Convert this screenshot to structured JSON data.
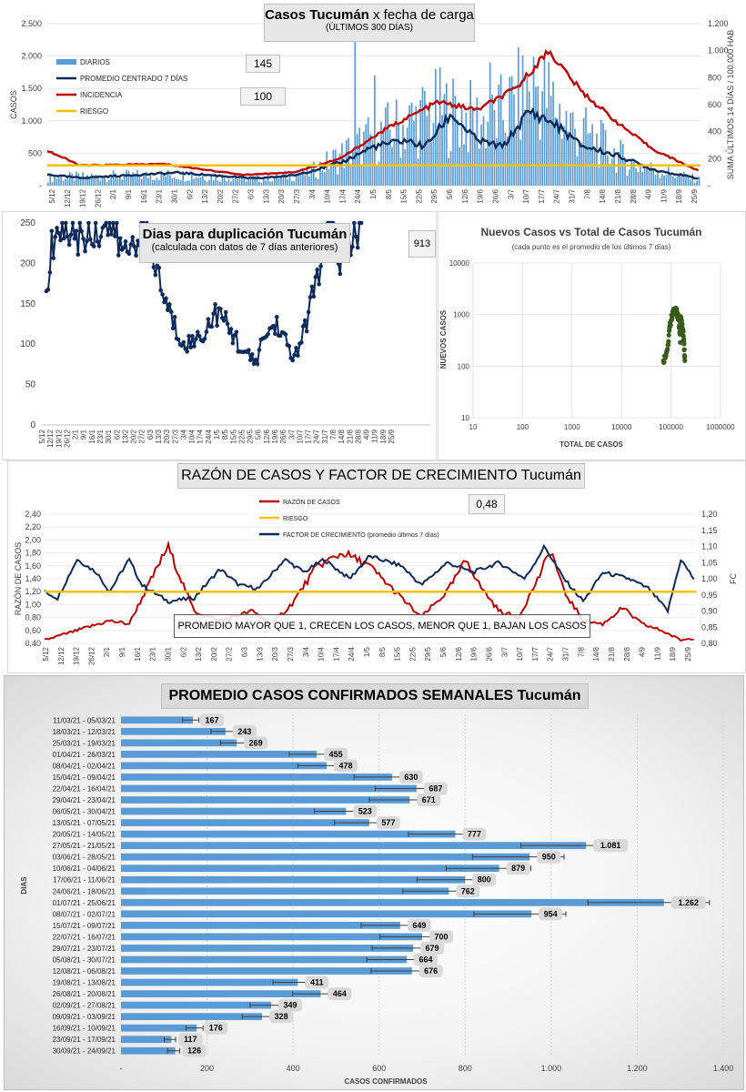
{
  "chart_data": [
    {
      "type": "bar",
      "title_main": "Casos Tucumán",
      "title_suffix": "x fecha de carga",
      "subtitle": "(ÚLTIMOS 300 DÍAS)",
      "ylabel": "CASOS",
      "y2label": "SUMA ÚLTIMOS 14 DÍAS / 100.000 HAB",
      "ylim": [
        0,
        2500
      ],
      "y2lim": [
        0,
        1200
      ],
      "yticks": [
        "-",
        "500",
        "1.000",
        "1.500",
        "2.000",
        "2.500"
      ],
      "y2ticks": [
        "-",
        "200",
        "400",
        "600",
        "800",
        "1.000",
        "1.200"
      ],
      "xticks": [
        "5/12",
        "12/12",
        "19/12",
        "26/12",
        "2/1",
        "9/1",
        "16/1",
        "23/1",
        "30/1",
        "6/2",
        "13/2",
        "20/2",
        "27/2",
        "6/3",
        "13/3",
        "20/3",
        "27/3",
        "3/4",
        "10/4",
        "17/4",
        "24/4",
        "1/5",
        "8/5",
        "15/5",
        "22/5",
        "29/5",
        "5/6",
        "12/6",
        "19/6",
        "26/6",
        "3/7",
        "10/7",
        "17/7",
        "24/7",
        "31/7",
        "7/8",
        "14/8",
        "21/8",
        "28/8",
        "4/9",
        "11/9",
        "18/9",
        "25/9"
      ],
      "legend": [
        "DIARIOS",
        "PROMEDIO CENTRADO 7 DÍAS",
        "INCIDENCIA",
        "RIESGO"
      ],
      "series_key_values": {
        "diarios_peak": 2300,
        "promedio_peak": 1262,
        "incidencia_peak": 1000,
        "riesgo": 150
      },
      "annotation_promedio": "145",
      "annotation_incidencia": "100"
    },
    {
      "type": "line",
      "title": "Dias para duplicación Tucumán",
      "subtitle": "(calculada con datos de 7 días anteriores)",
      "ylim": [
        0,
        250
      ],
      "yticks": [
        "0",
        "50",
        "100",
        "150",
        "200",
        "250"
      ],
      "xticks": [
        "5/12",
        "12/12",
        "19/12",
        "26/12",
        "2/1",
        "9/1",
        "16/1",
        "23/1",
        "30/1",
        "6/2",
        "13/2",
        "20/2",
        "27/2",
        "6/3",
        "13/3",
        "20/3",
        "27/3",
        "3/4",
        "10/4",
        "17/4",
        "24/4",
        "1/5",
        "8/5",
        "15/5",
        "22/5",
        "29/5",
        "5/6",
        "12/6",
        "19/6",
        "26/6",
        "3/7",
        "10/7",
        "17/7",
        "24/7",
        "31/7",
        "7/8",
        "14/8",
        "21/8",
        "28/8",
        "4/9",
        "11/9",
        "18/9",
        "25/9"
      ],
      "annotation": "913"
    },
    {
      "type": "scatter",
      "title": "Nuevos Casos vs Total de Casos Tucumán",
      "subtitle": "(cada punto es el promedio de los últimos 7 días)",
      "xlabel": "TOTAL DE CASOS",
      "ylabel": "NUEVOS CASOS",
      "xscale": "log",
      "yscale": "log",
      "xticks": [
        "10",
        "100",
        "1000",
        "10000",
        "100000",
        "1000000"
      ],
      "yticks": [
        "10",
        "100",
        "1000",
        "10000"
      ]
    },
    {
      "type": "line",
      "title": "RAZÓN DE CASOS Y FACTOR DE CRECIMIENTO Tucumán",
      "ylabel": "RAZÓN DE CASOS",
      "y2label": "FC",
      "ylim": [
        0.4,
        2.4
      ],
      "y2lim": [
        0.8,
        1.2
      ],
      "yticks": [
        "0,40",
        "0,60",
        "0,80",
        "1,00",
        "1,20",
        "1,40",
        "1,60",
        "1,80",
        "2,00",
        "2,20",
        "2,40"
      ],
      "y2ticks": [
        "0,80",
        "0,85",
        "0,90",
        "0,95",
        "1,00",
        "1,05",
        "1,10",
        "1,15",
        "1,20"
      ],
      "xticks": [
        "5/12",
        "12/12",
        "19/12",
        "26/12",
        "2/1",
        "9/1",
        "16/1",
        "23/1",
        "30/1",
        "6/2",
        "13/2",
        "20/2",
        "27/2",
        "6/3",
        "13/3",
        "20/3",
        "27/3",
        "3/4",
        "10/4",
        "17/4",
        "24/4",
        "1/5",
        "8/5",
        "15/5",
        "22/5",
        "29/5",
        "5/6",
        "12/6",
        "19/6",
        "26/6",
        "3/7",
        "10/7",
        "17/7",
        "24/7",
        "31/7",
        "7/8",
        "14/8",
        "21/8",
        "28/8",
        "4/9",
        "11/9",
        "18/9",
        "25/9"
      ],
      "legend": [
        "RAZÓN DE CASOS",
        "RIESGO",
        "FACTOR DE CRECIMIENTO (promedio últimos 7 días)"
      ],
      "riesgo": 1.2,
      "annotation": "0,48",
      "note": "PROMEDIO MAYOR QUE 1, CRECEN LOS CASOS, MENOR QUE 1, BAJAN LOS CASOS"
    },
    {
      "type": "bar",
      "orientation": "horizontal",
      "title": "PROMEDIO CASOS CONFIRMADOS SEMANALES Tucumán",
      "xlabel": "CASOS CONFIRMADOS",
      "ylabel": "DIAS",
      "xlim": [
        0,
        1400
      ],
      "xticks": [
        "-",
        "200",
        "400",
        "600",
        "800",
        "1.000",
        "1.200",
        "1.400"
      ],
      "categories": [
        "11/03/21 - 05/03/21",
        "18/03/21 - 12/03/21",
        "25/03/21 - 19/03/21",
        "01/04/21 - 26/03/21",
        "08/04/21 - 02/04/21",
        "15/04/21 - 09/04/21",
        "22/04/21 - 16/04/21",
        "29/04/21 - 23/04/21",
        "06/05/21 - 30/04/21",
        "13/05/21 - 07/05/21",
        "20/05/21 - 14/05/21",
        "27/05/21 - 21/05/21",
        "03/06/21 - 28/05/21",
        "10/06/21 - 04/06/21",
        "17/06/21 - 11/06/21",
        "24/06/21 - 18/06/21",
        "01/07/21 - 25/06/21",
        "08/07/21 - 02/07/21",
        "15/07/21 - 09/07/21",
        "22/07/21 - 16/07/21",
        "29/07/21 - 23/07/21",
        "05/08/21 - 30/07/21",
        "12/08/21 - 06/08/21",
        "19/08/21 - 13/08/21",
        "26/08/21 - 20/08/21",
        "02/09/21 - 27/08/21",
        "09/09/21 - 03/09/21",
        "16/09/21 - 10/09/21",
        "23/09/21 - 17/09/21",
        "30/09/21 - 24/09/21"
      ],
      "values": [
        167,
        243,
        269,
        455,
        478,
        630,
        687,
        671,
        523,
        577,
        777,
        1081,
        950,
        879,
        800,
        762,
        1262,
        954,
        649,
        700,
        679,
        664,
        676,
        411,
        464,
        349,
        328,
        176,
        117,
        126
      ],
      "labels": [
        "167",
        "243",
        "269",
        "455",
        "478",
        "630",
        "687",
        "671",
        "523",
        "577",
        "777",
        "1.081",
        "950",
        "879",
        "800",
        "762",
        "1.262",
        "954",
        "649",
        "700",
        "679",
        "664",
        "676",
        "411",
        "464",
        "349",
        "328",
        "176",
        "117",
        "126"
      ]
    }
  ],
  "colors": {
    "bars": "#5b9bd5",
    "navy": "#0c2a5c",
    "red": "#c00000",
    "orange": "#ffc000",
    "green": "#3a5a1e"
  }
}
